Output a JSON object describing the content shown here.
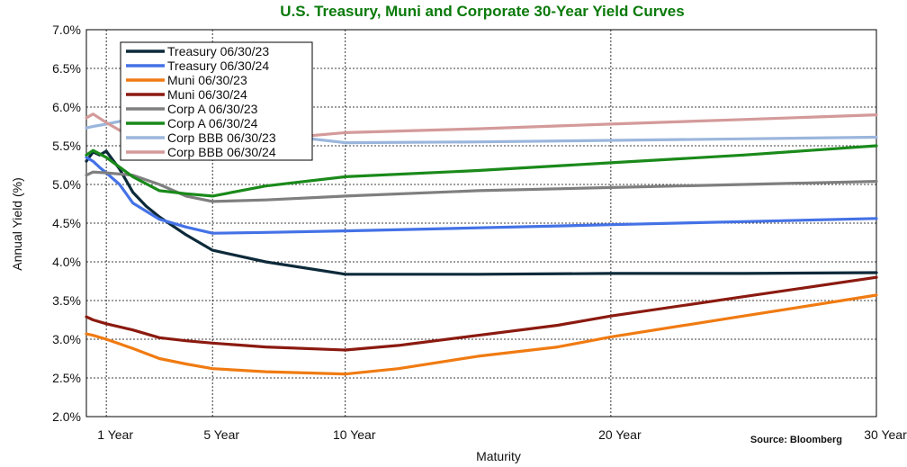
{
  "chart_data": {
    "type": "line",
    "title": "U.S. Treasury, Muni and Corporate 30-Year Yield Curves",
    "xlabel": "Maturity",
    "ylabel": "Annual Yield (%)",
    "source": "Source: Bloomberg",
    "xlim": [
      0.25,
      30
    ],
    "ylim": [
      2.0,
      7.0
    ],
    "grid": true,
    "legend_position": "top-left",
    "x_ticks": [
      {
        "value": 1,
        "label": "1 Year"
      },
      {
        "value": 5,
        "label": "5 Year"
      },
      {
        "value": 10,
        "label": "10 Year"
      },
      {
        "value": 20,
        "label": "20 Year"
      },
      {
        "value": 30,
        "label": "30 Year"
      }
    ],
    "y_ticks": [
      {
        "value": 2.0,
        "label": "2.0%"
      },
      {
        "value": 2.5,
        "label": "2.5%"
      },
      {
        "value": 3.0,
        "label": "3.0%"
      },
      {
        "value": 3.5,
        "label": "3.5%"
      },
      {
        "value": 4.0,
        "label": "4.0%"
      },
      {
        "value": 4.5,
        "label": "4.5%"
      },
      {
        "value": 5.0,
        "label": "5.0%"
      },
      {
        "value": 5.5,
        "label": "5.5%"
      },
      {
        "value": 6.0,
        "label": "6.0%"
      },
      {
        "value": 6.5,
        "label": "6.5%"
      },
      {
        "value": 7.0,
        "label": "7.0%"
      }
    ],
    "series": [
      {
        "name": "Treasury 06/30/23",
        "color": "#0d2a3a",
        "points": [
          [
            0.25,
            5.3
          ],
          [
            0.5,
            5.42
          ],
          [
            0.75,
            5.38
          ],
          [
            1,
            5.43
          ],
          [
            1.5,
            5.2
          ],
          [
            2,
            4.9
          ],
          [
            2.5,
            4.72
          ],
          [
            3,
            4.58
          ],
          [
            4,
            4.35
          ],
          [
            5,
            4.15
          ],
          [
            7,
            4.0
          ],
          [
            10,
            3.84
          ],
          [
            15,
            3.84
          ],
          [
            20,
            3.85
          ],
          [
            25,
            3.85
          ],
          [
            30,
            3.86
          ]
        ]
      },
      {
        "name": "Treasury 06/30/24",
        "color": "#4472e6",
        "points": [
          [
            0.25,
            5.35
          ],
          [
            0.5,
            5.3
          ],
          [
            0.75,
            5.22
          ],
          [
            1,
            5.15
          ],
          [
            1.5,
            5.0
          ],
          [
            2,
            4.76
          ],
          [
            3,
            4.55
          ],
          [
            4,
            4.45
          ],
          [
            5,
            4.37
          ],
          [
            7,
            4.38
          ],
          [
            10,
            4.4
          ],
          [
            15,
            4.44
          ],
          [
            20,
            4.48
          ],
          [
            25,
            4.52
          ],
          [
            30,
            4.56
          ]
        ]
      },
      {
        "name": "Muni 06/30/23",
        "color": "#f07b12",
        "points": [
          [
            0.25,
            3.07
          ],
          [
            0.5,
            3.05
          ],
          [
            1,
            3.0
          ],
          [
            2,
            2.88
          ],
          [
            3,
            2.75
          ],
          [
            4,
            2.68
          ],
          [
            5,
            2.62
          ],
          [
            7,
            2.58
          ],
          [
            10,
            2.55
          ],
          [
            12,
            2.62
          ],
          [
            15,
            2.78
          ],
          [
            18,
            2.9
          ],
          [
            20,
            3.03
          ],
          [
            25,
            3.3
          ],
          [
            30,
            3.57
          ]
        ]
      },
      {
        "name": "Muni 06/30/24",
        "color": "#8b1a10",
        "points": [
          [
            0.25,
            3.29
          ],
          [
            0.5,
            3.25
          ],
          [
            1,
            3.2
          ],
          [
            2,
            3.12
          ],
          [
            3,
            3.02
          ],
          [
            4,
            2.98
          ],
          [
            5,
            2.95
          ],
          [
            7,
            2.9
          ],
          [
            10,
            2.86
          ],
          [
            12,
            2.92
          ],
          [
            15,
            3.05
          ],
          [
            18,
            3.18
          ],
          [
            20,
            3.3
          ],
          [
            25,
            3.55
          ],
          [
            30,
            3.8
          ]
        ]
      },
      {
        "name": "Corp A 06/30/23",
        "color": "#7f7f7f",
        "points": [
          [
            0.25,
            5.12
          ],
          [
            0.5,
            5.16
          ],
          [
            1,
            5.15
          ],
          [
            2,
            5.12
          ],
          [
            3,
            5.0
          ],
          [
            4,
            4.85
          ],
          [
            5,
            4.78
          ],
          [
            7,
            4.8
          ],
          [
            10,
            4.85
          ],
          [
            15,
            4.92
          ],
          [
            20,
            4.96
          ],
          [
            25,
            5.0
          ],
          [
            30,
            5.04
          ]
        ]
      },
      {
        "name": "Corp A 06/30/24",
        "color": "#1a8a1a",
        "points": [
          [
            0.25,
            5.38
          ],
          [
            0.5,
            5.44
          ],
          [
            1,
            5.35
          ],
          [
            2,
            5.1
          ],
          [
            3,
            4.92
          ],
          [
            4,
            4.88
          ],
          [
            5,
            4.85
          ],
          [
            7,
            4.98
          ],
          [
            10,
            5.1
          ],
          [
            15,
            5.18
          ],
          [
            20,
            5.28
          ],
          [
            25,
            5.38
          ],
          [
            30,
            5.5
          ]
        ]
      },
      {
        "name": "Corp BBB 06/30/23",
        "color": "#9bb6dc",
        "points": [
          [
            0.25,
            5.73
          ],
          [
            0.5,
            5.75
          ],
          [
            1,
            5.78
          ],
          [
            2,
            5.85
          ],
          [
            10,
            5.54
          ],
          [
            15,
            5.55
          ],
          [
            20,
            5.57
          ],
          [
            25,
            5.59
          ],
          [
            30,
            5.61
          ]
        ]
      },
      {
        "name": "Corp BBB 06/30/24",
        "color": "#d49a9a",
        "points": [
          [
            0.25,
            5.86
          ],
          [
            0.5,
            5.91
          ],
          [
            1,
            5.8
          ],
          [
            1.5,
            5.7
          ],
          [
            2,
            5.62
          ],
          [
            7,
            5.58
          ],
          [
            10,
            5.67
          ],
          [
            15,
            5.72
          ],
          [
            20,
            5.78
          ],
          [
            25,
            5.84
          ],
          [
            30,
            5.9
          ]
        ]
      }
    ]
  }
}
